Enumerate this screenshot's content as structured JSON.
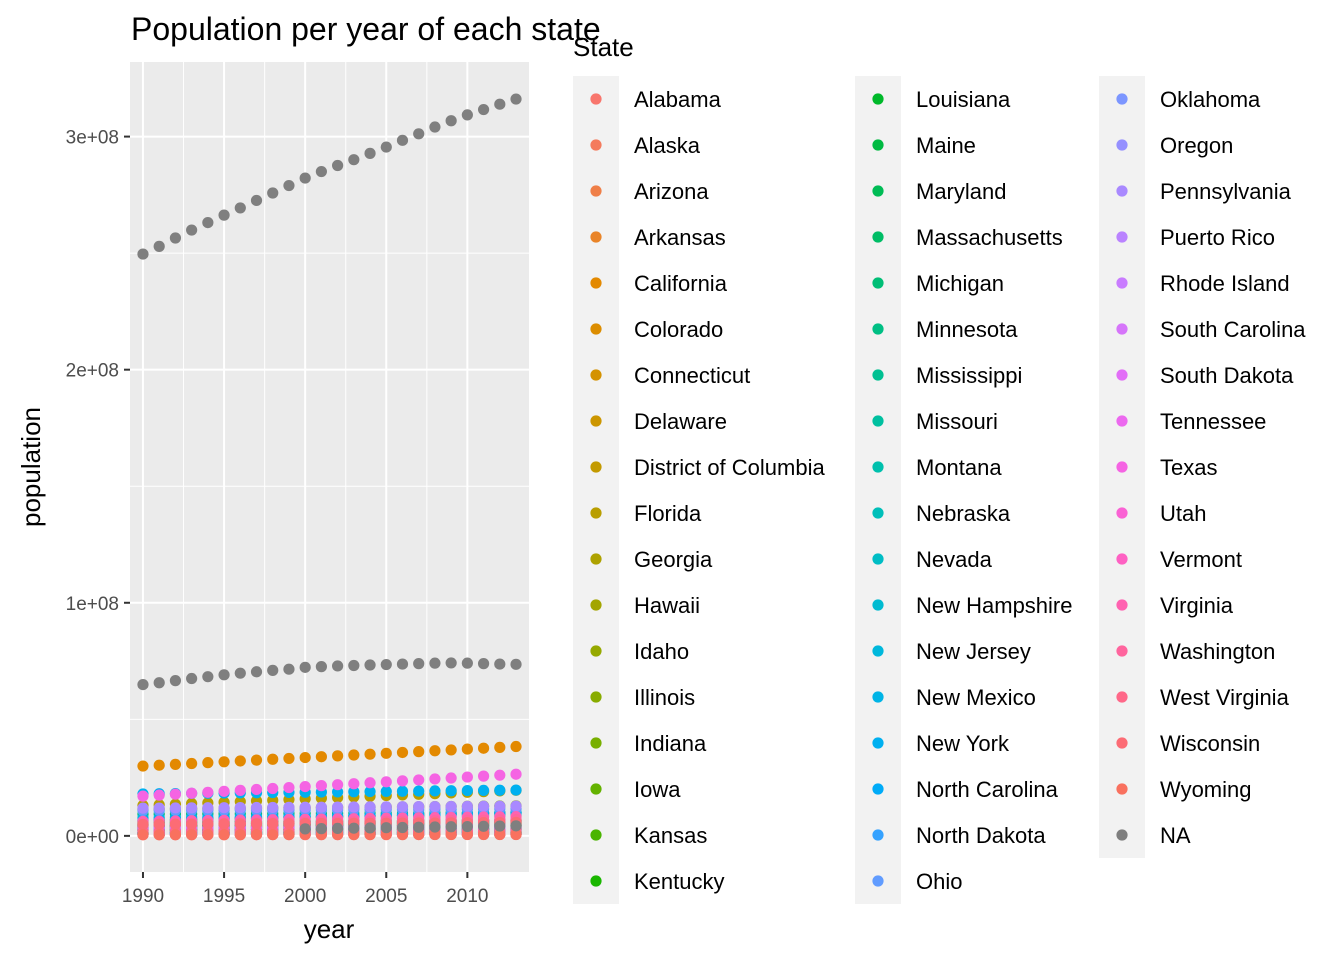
{
  "chart_data": {
    "type": "scatter",
    "title": "Population per year of each state",
    "xlabel": "year",
    "ylabel": "population",
    "xlim": [
      1989.2,
      2013.8
    ],
    "ylim": [
      -15500000,
      332000000
    ],
    "x_ticks": [
      {
        "value": 1990,
        "label": "1990"
      },
      {
        "value": 1995,
        "label": "1995"
      },
      {
        "value": 2000,
        "label": "2000"
      },
      {
        "value": 2005,
        "label": "2005"
      },
      {
        "value": 2010,
        "label": "2010"
      }
    ],
    "y_ticks": [
      {
        "value": 0,
        "label": "0e+00"
      },
      {
        "value": 100000000,
        "label": "1e+08"
      },
      {
        "value": 200000000,
        "label": "2e+08"
      },
      {
        "value": 300000000,
        "label": "3e+08"
      }
    ],
    "grid": true,
    "panel_background": "#ebebeb",
    "legend_title": "State",
    "legend_position": "right",
    "years": [
      1990,
      1991,
      1992,
      1993,
      1994,
      1995,
      1996,
      1997,
      1998,
      1999,
      2000,
      2001,
      2002,
      2003,
      2004,
      2005,
      2006,
      2007,
      2008,
      2009,
      2010,
      2011,
      2012,
      2013
    ],
    "series": [
      {
        "name": "Alabama",
        "color": "#F8766D",
        "start": 4050000,
        "end": 4830000
      },
      {
        "name": "Alaska",
        "color": "#F47B5D",
        "start": 550000,
        "end": 736000
      },
      {
        "name": "Arizona",
        "color": "#EF7F48",
        "start": 3680000,
        "end": 6630000
      },
      {
        "name": "Arkansas",
        "color": "#E98428",
        "start": 2350000,
        "end": 2960000
      },
      {
        "name": "California",
        "color": "#E38900",
        "start": 29950000,
        "end": 38330000
      },
      {
        "name": "Colorado",
        "color": "#DC8D00",
        "start": 3300000,
        "end": 5270000
      },
      {
        "name": "Connecticut",
        "color": "#D49200",
        "start": 3290000,
        "end": 3600000
      },
      {
        "name": "Delaware",
        "color": "#CC9600",
        "start": 670000,
        "end": 925000
      },
      {
        "name": "District of Columbia",
        "color": "#C39A00",
        "start": 605000,
        "end": 646000
      },
      {
        "name": "Florida",
        "color": "#B99E00",
        "start": 13030000,
        "end": 19550000
      },
      {
        "name": "Georgia",
        "color": "#AEA200",
        "start": 6510000,
        "end": 9990000
      },
      {
        "name": "Hawaii",
        "color": "#A3A500",
        "start": 1110000,
        "end": 1400000
      },
      {
        "name": "Idaho",
        "color": "#96A900",
        "start": 1010000,
        "end": 1610000
      },
      {
        "name": "Illinois",
        "color": "#88AC00",
        "start": 11450000,
        "end": 12880000
      },
      {
        "name": "Indiana",
        "color": "#78AF00",
        "start": 5560000,
        "end": 6570000
      },
      {
        "name": "Iowa",
        "color": "#64B200",
        "start": 2780000,
        "end": 3090000
      },
      {
        "name": "Kansas",
        "color": "#4AB400",
        "start": 2480000,
        "end": 2890000
      },
      {
        "name": "Kentucky",
        "color": "#1AB700",
        "start": 3690000,
        "end": 4400000
      },
      {
        "name": "Louisiana",
        "color": "#00B92A",
        "start": 4220000,
        "end": 4630000
      },
      {
        "name": "Maine",
        "color": "#00BA42",
        "start": 1230000,
        "end": 1330000
      },
      {
        "name": "Maryland",
        "color": "#00BC55",
        "start": 4800000,
        "end": 5930000
      },
      {
        "name": "Massachusetts",
        "color": "#00BD66",
        "start": 6020000,
        "end": 6690000
      },
      {
        "name": "Michigan",
        "color": "#00BE76",
        "start": 9310000,
        "end": 9900000
      },
      {
        "name": "Minnesota",
        "color": "#00BF84",
        "start": 4390000,
        "end": 5420000
      },
      {
        "name": "Mississippi",
        "color": "#00C092",
        "start": 2580000,
        "end": 2990000
      },
      {
        "name": "Missouri",
        "color": "#00C0A0",
        "start": 5130000,
        "end": 6040000
      },
      {
        "name": "Montana",
        "color": "#00C0AD",
        "start": 800000,
        "end": 1020000
      },
      {
        "name": "Nebraska",
        "color": "#00BFB9",
        "start": 1580000,
        "end": 1870000
      },
      {
        "name": "Nevada",
        "color": "#00BDC5",
        "start": 1220000,
        "end": 2790000
      },
      {
        "name": "New Hampshire",
        "color": "#00BBD1",
        "start": 1110000,
        "end": 1320000
      },
      {
        "name": "New Jersey",
        "color": "#00B8DC",
        "start": 7760000,
        "end": 8900000
      },
      {
        "name": "New Mexico",
        "color": "#00B4E6",
        "start": 1520000,
        "end": 2090000
      },
      {
        "name": "New York",
        "color": "#00B0F0",
        "start": 18000000,
        "end": 19650000
      },
      {
        "name": "North Carolina",
        "color": "#00ABF8",
        "start": 6660000,
        "end": 9850000
      },
      {
        "name": "North Dakota",
        "color": "#35A2FF",
        "start": 638000,
        "end": 723000
      },
      {
        "name": "Ohio",
        "color": "#619CFF",
        "start": 10860000,
        "end": 11570000
      },
      {
        "name": "Oklahoma",
        "color": "#7C96FF",
        "start": 3150000,
        "end": 3850000
      },
      {
        "name": "Oregon",
        "color": "#9590FF",
        "start": 2860000,
        "end": 3930000
      },
      {
        "name": "Pennsylvania",
        "color": "#A989FF",
        "start": 11900000,
        "end": 12770000
      },
      {
        "name": "Puerto Rico",
        "color": "#BA83FF",
        "start": 3530000,
        "end": 3620000
      },
      {
        "name": "Rhode Island",
        "color": "#C97CFF",
        "start": 1005000,
        "end": 1050000
      },
      {
        "name": "South Carolina",
        "color": "#D675FA",
        "start": 3490000,
        "end": 4770000
      },
      {
        "name": "South Dakota",
        "color": "#E26EF7",
        "start": 697000,
        "end": 845000
      },
      {
        "name": "Tennessee",
        "color": "#EC69EF",
        "start": 4890000,
        "end": 6490000
      },
      {
        "name": "Texas",
        "color": "#F564E3",
        "start": 17060000,
        "end": 26450000
      },
      {
        "name": "Utah",
        "color": "#FA62D4",
        "start": 1730000,
        "end": 2900000
      },
      {
        "name": "Vermont",
        "color": "#FE61C3",
        "start": 565000,
        "end": 627000
      },
      {
        "name": "Virginia",
        "color": "#FF62B1",
        "start": 6220000,
        "end": 8260000
      },
      {
        "name": "Washington",
        "color": "#FF659E",
        "start": 4900000,
        "end": 6970000
      },
      {
        "name": "West Virginia",
        "color": "#FF6889",
        "start": 1790000,
        "end": 1850000
      },
      {
        "name": "Wisconsin",
        "color": "#FC6C75",
        "start": 4900000,
        "end": 5740000
      },
      {
        "name": "Wyoming",
        "color": "#F9715F",
        "start": 454000,
        "end": 583000
      },
      {
        "name": "NA",
        "color": "#7F7F7F",
        "values": [
          249600000,
          252900000,
          256500000,
          259900000,
          263100000,
          266300000,
          269400000,
          272600000,
          275800000,
          279000000,
          282200000,
          285000000,
          287600000,
          290100000,
          292800000,
          295500000,
          298400000,
          301200000,
          304100000,
          306800000,
          309300000,
          311600000,
          313900000,
          316100000
        ]
      },
      {
        "name": "NA",
        "color": "#7F7F7F",
        "values": [
          64900000,
          65700000,
          66600000,
          67500000,
          68300000,
          69100000,
          69800000,
          70400000,
          71000000,
          71500000,
          72300000,
          72600000,
          72900000,
          73100000,
          73300000,
          73500000,
          73700000,
          73900000,
          74100000,
          74200000,
          74100000,
          73900000,
          73700000,
          73600000
        ]
      },
      {
        "name": "NA",
        "color": "#7F7F7F",
        "x_start": 2000,
        "values": [
          3000000,
          3100000,
          3200000,
          3300000,
          3400000,
          3500000,
          3600000,
          3700000,
          3800000,
          3900000,
          4000000,
          4100000,
          4200000,
          4300000
        ]
      }
    ],
    "legend_columns": [
      [
        "Alabama",
        "Alaska",
        "Arizona",
        "Arkansas",
        "California",
        "Colorado",
        "Connecticut",
        "Delaware",
        "District of Columbia",
        "Florida",
        "Georgia",
        "Hawaii",
        "Idaho",
        "Illinois",
        "Indiana",
        "Iowa",
        "Kansas",
        "Kentucky"
      ],
      [
        "Louisiana",
        "Maine",
        "Maryland",
        "Massachusetts",
        "Michigan",
        "Minnesota",
        "Mississippi",
        "Missouri",
        "Montana",
        "Nebraska",
        "Nevada",
        "New Hampshire",
        "New Jersey",
        "New Mexico",
        "New York",
        "North Carolina",
        "North Dakota",
        "Ohio"
      ],
      [
        "Oklahoma",
        "Oregon",
        "Pennsylvania",
        "Puerto Rico",
        "Rhode Island",
        "South Carolina",
        "South Dakota",
        "Tennessee",
        "Texas",
        "Utah",
        "Vermont",
        "Virginia",
        "Washington",
        "West Virginia",
        "Wisconsin",
        "Wyoming",
        "NA"
      ]
    ]
  }
}
